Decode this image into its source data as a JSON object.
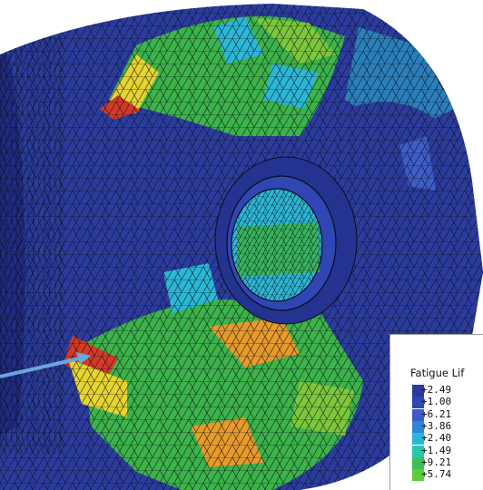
{
  "legend": {
    "title": "Fatigue Lif",
    "entries": [
      {
        "label": "+2.49",
        "color": "#2b3a9c"
      },
      {
        "label": "+1.00",
        "color": "#2f46b4"
      },
      {
        "label": "+6.21",
        "color": "#3a5ccc"
      },
      {
        "label": "+3.86",
        "color": "#2f86d8"
      },
      {
        "label": "+2.40",
        "color": "#27b8d8"
      },
      {
        "label": "+1.49",
        "color": "#27c8a8"
      },
      {
        "label": "+9.21",
        "color": "#39c05a"
      },
      {
        "label": "+5.74",
        "color": "#5ccc3a"
      }
    ]
  },
  "palette": {
    "base_blue": "#2b3c9e",
    "dark_blue": "#1f2d86",
    "light_blue": "#3d5ec8",
    "cyan": "#2bb8d6",
    "green": "#3cb44a",
    "light_green": "#7cc83a",
    "yellow": "#e6d430",
    "orange": "#e89a2a",
    "red": "#d63a26",
    "arrow": "#6aa6de",
    "mesh_line": "#0c0c18"
  }
}
